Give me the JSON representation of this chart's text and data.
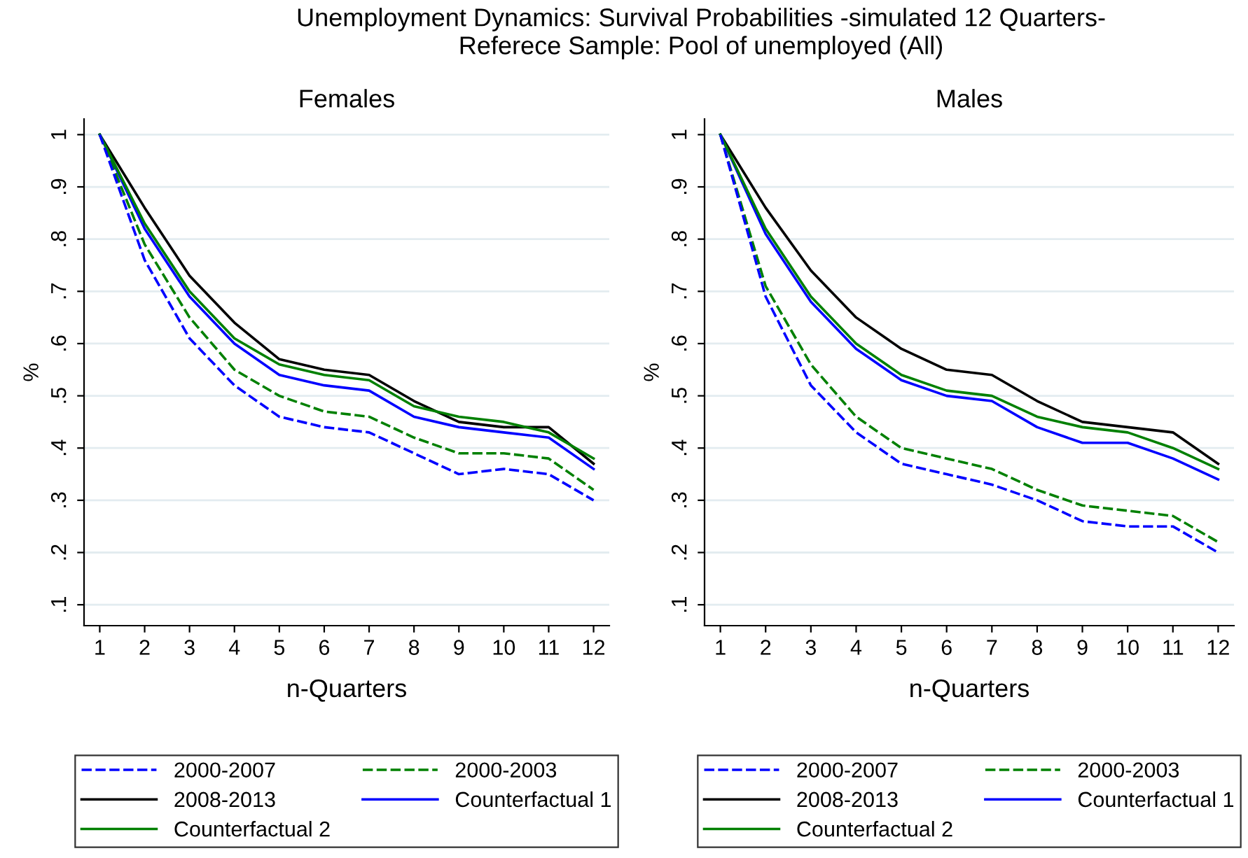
{
  "chart_data": [
    {
      "type": "line",
      "title": "Females",
      "xlabel": "n-Quarters",
      "ylabel": "%",
      "annotations": [
        "Unemployment Dynamics: Survival Probabilities -simulated 12 Quarters-",
        "Referece Sample: Pool of unemployed (All)"
      ],
      "x": [
        1,
        2,
        3,
        4,
        5,
        6,
        7,
        8,
        9,
        10,
        11,
        12
      ],
      "xlim": [
        0.65,
        12.35
      ],
      "xticks": [
        1,
        2,
        3,
        4,
        5,
        6,
        7,
        8,
        9,
        10,
        11,
        12
      ],
      "ylim": [
        0.06,
        1.03
      ],
      "yticks": [
        {
          "value": 0.1,
          "label": ".1"
        },
        {
          "value": 0.2,
          "label": ".2"
        },
        {
          "value": 0.3,
          "label": ".3"
        },
        {
          "value": 0.4,
          "label": ".4"
        },
        {
          "value": 0.5,
          "label": ".5"
        },
        {
          "value": 0.6,
          "label": ".6"
        },
        {
          "value": 0.7,
          "label": ".7"
        },
        {
          "value": 0.8,
          "label": ".8"
        },
        {
          "value": 0.9,
          "label": ".9"
        },
        {
          "value": 1,
          "label": "1"
        }
      ],
      "grid": "y",
      "legend": "bottom",
      "series": [
        {
          "name": "2000-2007",
          "color": "#0000ff",
          "line_style": "dashed",
          "values": [
            1.0,
            0.76,
            0.61,
            0.52,
            0.46,
            0.44,
            0.43,
            0.39,
            0.35,
            0.36,
            0.35,
            0.3
          ]
        },
        {
          "name": "2000-2003",
          "color": "#008000",
          "line_style": "dashed",
          "values": [
            1.0,
            0.79,
            0.65,
            0.55,
            0.5,
            0.47,
            0.46,
            0.42,
            0.39,
            0.39,
            0.38,
            0.32
          ]
        },
        {
          "name": "2008-2013",
          "color": "#000000",
          "line_style": "solid",
          "values": [
            1.0,
            0.86,
            0.73,
            0.64,
            0.57,
            0.55,
            0.54,
            0.49,
            0.45,
            0.44,
            0.44,
            0.37
          ]
        },
        {
          "name": "Counterfactual 1",
          "color": "#0000ff",
          "line_style": "solid",
          "values": [
            1.0,
            0.82,
            0.69,
            0.6,
            0.54,
            0.52,
            0.51,
            0.46,
            0.44,
            0.43,
            0.42,
            0.36
          ]
        },
        {
          "name": "Counterfactual 2",
          "color": "#008000",
          "line_style": "solid",
          "values": [
            1.0,
            0.83,
            0.7,
            0.61,
            0.56,
            0.54,
            0.53,
            0.48,
            0.46,
            0.45,
            0.43,
            0.38
          ]
        }
      ]
    },
    {
      "type": "line",
      "title": "Males",
      "xlabel": "n-Quarters",
      "ylabel": "%",
      "x": [
        1,
        2,
        3,
        4,
        5,
        6,
        7,
        8,
        9,
        10,
        11,
        12
      ],
      "xlim": [
        0.65,
        12.35
      ],
      "xticks": [
        1,
        2,
        3,
        4,
        5,
        6,
        7,
        8,
        9,
        10,
        11,
        12
      ],
      "ylim": [
        0.06,
        1.03
      ],
      "yticks": [
        {
          "value": 0.1,
          "label": ".1"
        },
        {
          "value": 0.2,
          "label": ".2"
        },
        {
          "value": 0.3,
          "label": ".3"
        },
        {
          "value": 0.4,
          "label": ".4"
        },
        {
          "value": 0.5,
          "label": ".5"
        },
        {
          "value": 0.6,
          "label": ".6"
        },
        {
          "value": 0.7,
          "label": ".7"
        },
        {
          "value": 0.8,
          "label": ".8"
        },
        {
          "value": 0.9,
          "label": ".9"
        },
        {
          "value": 1,
          "label": "1"
        }
      ],
      "grid": "y",
      "legend": "bottom",
      "series": [
        {
          "name": "2000-2007",
          "color": "#0000ff",
          "line_style": "dashed",
          "values": [
            1.0,
            0.69,
            0.52,
            0.43,
            0.37,
            0.35,
            0.33,
            0.3,
            0.26,
            0.25,
            0.25,
            0.2
          ]
        },
        {
          "name": "2000-2003",
          "color": "#008000",
          "line_style": "dashed",
          "values": [
            1.0,
            0.71,
            0.56,
            0.46,
            0.4,
            0.38,
            0.36,
            0.32,
            0.29,
            0.28,
            0.27,
            0.22
          ]
        },
        {
          "name": "2008-2013",
          "color": "#000000",
          "line_style": "solid",
          "values": [
            1.0,
            0.86,
            0.74,
            0.65,
            0.59,
            0.55,
            0.54,
            0.49,
            0.45,
            0.44,
            0.43,
            0.37
          ]
        },
        {
          "name": "Counterfactual 1",
          "color": "#0000ff",
          "line_style": "solid",
          "values": [
            1.0,
            0.81,
            0.68,
            0.59,
            0.53,
            0.5,
            0.49,
            0.44,
            0.41,
            0.41,
            0.38,
            0.34
          ]
        },
        {
          "name": "Counterfactual 2",
          "color": "#008000",
          "line_style": "solid",
          "values": [
            1.0,
            0.82,
            0.69,
            0.6,
            0.54,
            0.51,
            0.5,
            0.46,
            0.44,
            0.43,
            0.4,
            0.36
          ]
        }
      ]
    }
  ]
}
